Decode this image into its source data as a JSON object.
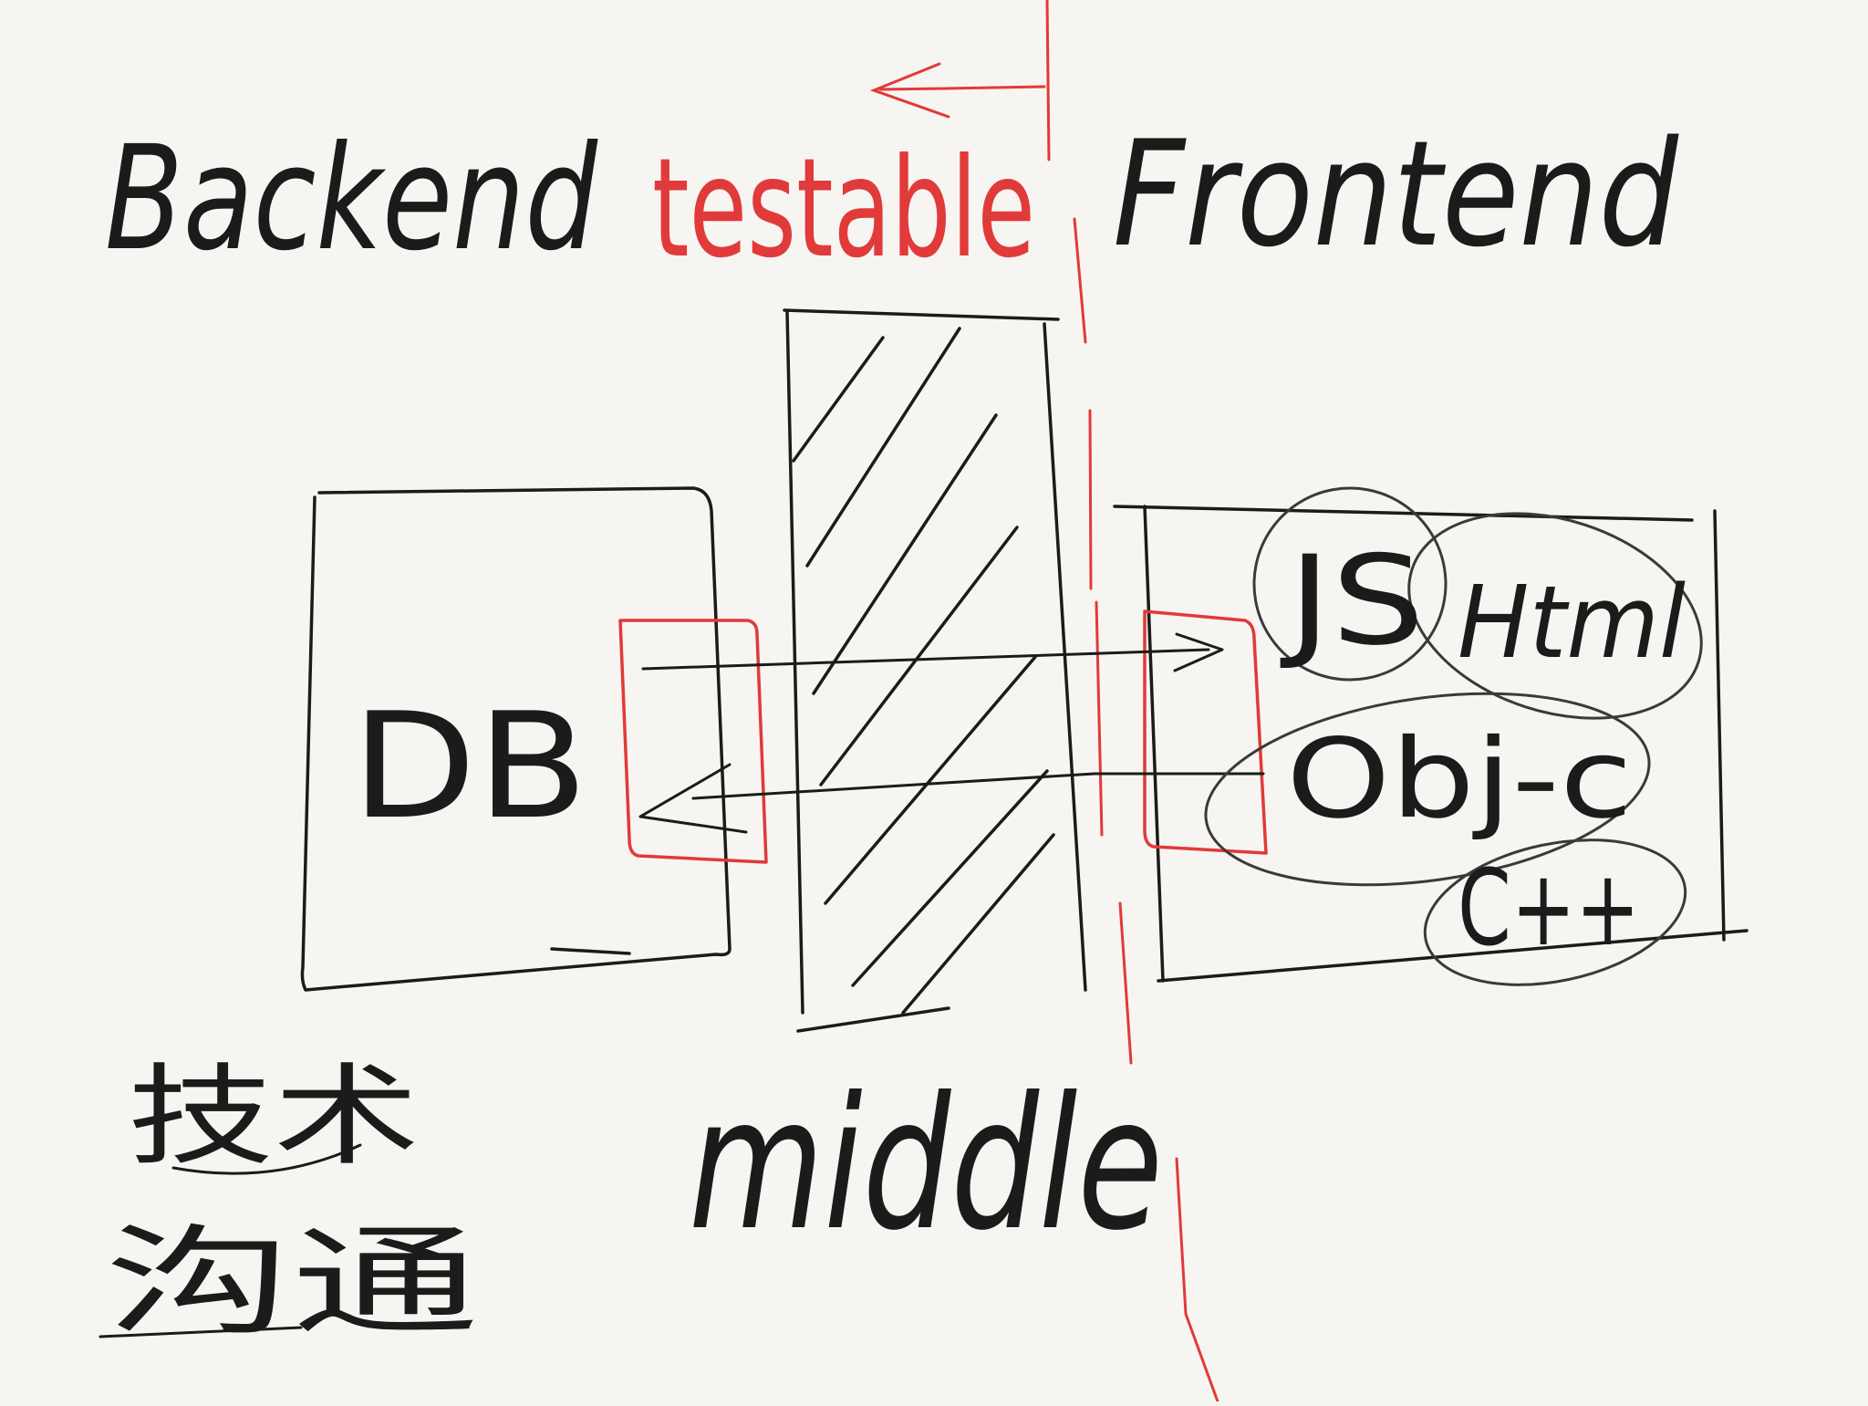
{
  "background_color": "#f6f5f1",
  "ink_colors": {
    "black": "#1b1b1b",
    "red": "#e03a3a",
    "gray": "#3a3a3a"
  },
  "labels": {
    "backend": "Backend",
    "testable": "testable",
    "frontend": "Frontend",
    "db": "DB",
    "middle": "middle",
    "js": "JS",
    "html": "Html",
    "objc": "Obj-c",
    "cpp": "C++",
    "note_line1": "技术",
    "note_line2": "沟通"
  }
}
